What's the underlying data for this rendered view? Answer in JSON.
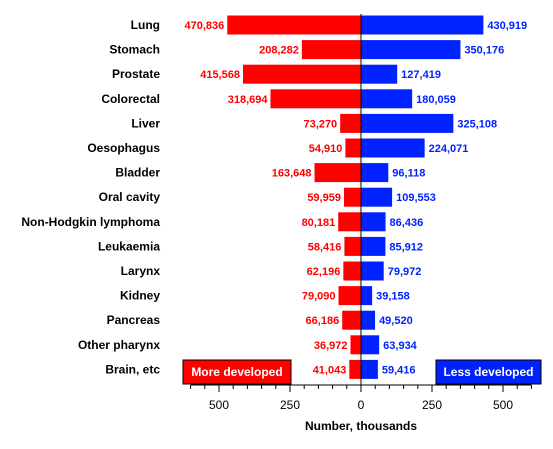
{
  "chart_data": {
    "type": "bar",
    "orientation": "horizontal-diverging",
    "categories": [
      "Lung",
      "Stomach",
      "Prostate",
      "Colorectal",
      "Liver",
      "Oesophagus",
      "Bladder",
      "Oral cavity",
      "Non-Hodgkin lymphoma",
      "Leukaemia",
      "Larynx",
      "Kidney",
      "Pancreas",
      "Other pharynx",
      "Brain, etc"
    ],
    "series": [
      {
        "name": "More developed",
        "direction": "left",
        "color": "#ff0000",
        "values": [
          470836,
          208282,
          415568,
          318694,
          73270,
          54910,
          163648,
          59959,
          80181,
          58416,
          62196,
          79090,
          66186,
          36972,
          41043
        ],
        "labels": [
          "470,836",
          "208,282",
          "415,568",
          "318,694",
          "73,270",
          "54,910",
          "163,648",
          "59,959",
          "80,181",
          "58,416",
          "62,196",
          "79,090",
          "66,186",
          "36,972",
          "41,043"
        ]
      },
      {
        "name": "Less developed",
        "direction": "right",
        "color": "#0022ff",
        "values": [
          430919,
          350176,
          127419,
          180059,
          325108,
          224071,
          96118,
          109553,
          86436,
          85912,
          79972,
          39158,
          49520,
          63934,
          59416
        ],
        "labels": [
          "430,919",
          "350,176",
          "127,419",
          "180,059",
          "325,108",
          "224,071",
          "96,118",
          "109,553",
          "86,436",
          "85,912",
          "79,972",
          "39,158",
          "49,520",
          "63,934",
          "59,416"
        ]
      }
    ],
    "x_ticks": [
      500,
      250,
      0,
      250,
      500
    ],
    "x_tick_values": [
      -500,
      -250,
      0,
      250,
      500
    ],
    "xlim": [
      -600,
      600
    ],
    "unit_divisor": 1000,
    "xlabel": "Number, thousands",
    "ylabel": "",
    "title": "",
    "grid": false,
    "legend": "inside bottom, one box per side"
  }
}
